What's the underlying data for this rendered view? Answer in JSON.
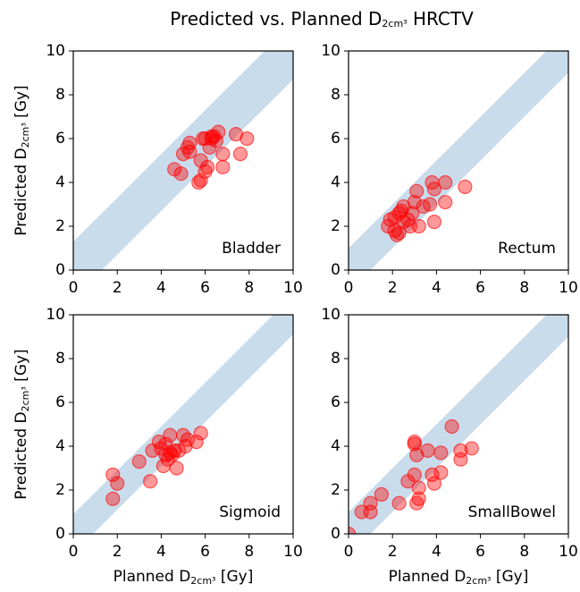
{
  "title": [
    "Predicted vs. Planned D",
    "2cm³",
    " HRCTV"
  ],
  "chart_data": [
    {
      "type": "scatter",
      "label": "Bladder",
      "ylabel": [
        "Predicted D",
        "2cm³",
        " [Gy]"
      ],
      "xlim": [
        0,
        10
      ],
      "ylim": [
        0,
        10
      ],
      "xticks": [
        0,
        2,
        4,
        6,
        8,
        10
      ],
      "yticks": [
        0,
        2,
        4,
        6,
        8,
        10
      ],
      "band_halfwidth": 1.3,
      "band_color": "#c9dcec",
      "color": "#ff0000",
      "x": [
        4.6,
        4.9,
        5.0,
        5.2,
        5.3,
        5.3,
        5.7,
        5.8,
        5.8,
        5.9,
        6.0,
        6.0,
        6.1,
        6.2,
        6.3,
        6.3,
        6.4,
        6.5,
        6.6,
        6.8,
        6.8,
        7.4,
        7.6,
        7.9
      ],
      "y": [
        4.6,
        4.4,
        5.3,
        5.6,
        5.8,
        5.4,
        4.0,
        4.1,
        5.0,
        6.0,
        4.5,
        6.0,
        4.7,
        5.6,
        6.1,
        6.0,
        6.1,
        5.9,
        6.3,
        4.7,
        5.3,
        6.2,
        5.3,
        6.0
      ]
    },
    {
      "type": "scatter",
      "label": "Rectum",
      "xlim": [
        0,
        10
      ],
      "ylim": [
        0,
        10
      ],
      "xticks": [
        0,
        2,
        4,
        6,
        8,
        10
      ],
      "yticks": [
        0,
        2,
        4,
        6,
        8,
        10
      ],
      "band_halfwidth": 1.0,
      "band_color": "#c9dcec",
      "color": "#ff0000",
      "x": [
        1.8,
        1.9,
        2.1,
        2.1,
        2.2,
        2.3,
        2.3,
        2.4,
        2.5,
        2.5,
        2.7,
        2.8,
        2.9,
        3.0,
        3.1,
        3.2,
        3.4,
        3.7,
        3.8,
        3.9,
        3.9,
        4.4,
        4.4,
        5.3
      ],
      "y": [
        2.0,
        2.3,
        1.8,
        2.4,
        1.6,
        1.7,
        2.6,
        2.7,
        2.9,
        2.2,
        2.3,
        2.0,
        2.6,
        3.1,
        3.6,
        2.0,
        2.9,
        3.0,
        4.0,
        3.7,
        2.2,
        3.1,
        4.0,
        3.8
      ]
    },
    {
      "type": "scatter",
      "label": "Sigmoid",
      "xlabel": [
        "Planned D",
        "2cm³",
        " [Gy]"
      ],
      "ylabel": [
        "Predicted D",
        "2cm³",
        " [Gy]"
      ],
      "xlim": [
        0,
        10
      ],
      "ylim": [
        0,
        10
      ],
      "xticks": [
        0,
        2,
        4,
        6,
        8,
        10
      ],
      "yticks": [
        0,
        2,
        4,
        6,
        8,
        10
      ],
      "band_halfwidth": 0.9,
      "band_color": "#c9dcec",
      "color": "#ff0000",
      "x": [
        1.8,
        1.8,
        2.0,
        3.0,
        3.5,
        3.6,
        3.9,
        4.0,
        4.1,
        4.2,
        4.3,
        4.4,
        4.4,
        4.5,
        4.6,
        4.7,
        4.8,
        5.0,
        5.1,
        5.2,
        5.6,
        5.8,
        4.2
      ],
      "y": [
        2.7,
        1.6,
        2.3,
        3.3,
        2.4,
        3.8,
        4.2,
        3.9,
        3.1,
        4.1,
        3.4,
        3.7,
        4.5,
        3.6,
        3.8,
        3.0,
        3.8,
        4.5,
        4.0,
        4.3,
        4.2,
        4.6,
        3.6
      ]
    },
    {
      "type": "scatter",
      "label": "SmallBowel",
      "xlabel": [
        "Planned D",
        "2cm³",
        " [Gy]"
      ],
      "xlim": [
        0,
        10
      ],
      "ylim": [
        0,
        10
      ],
      "xticks": [
        0,
        2,
        4,
        6,
        8,
        10
      ],
      "yticks": [
        0,
        2,
        4,
        6,
        8,
        10
      ],
      "band_halfwidth": 1.0,
      "band_color": "#c9dcec",
      "color": "#ff0000",
      "x": [
        0,
        0.6,
        1.0,
        1.0,
        1.5,
        2.3,
        2.7,
        3.0,
        3.0,
        3.0,
        3.1,
        3.1,
        3.2,
        3.2,
        3.6,
        3.8,
        3.9,
        4.2,
        4.2,
        4.7,
        5.1,
        5.1,
        5.6
      ],
      "y": [
        0,
        1.0,
        1.0,
        1.4,
        1.8,
        1.4,
        2.4,
        4.2,
        4.1,
        2.7,
        3.6,
        1.4,
        2.1,
        1.6,
        3.8,
        2.7,
        2.3,
        3.7,
        2.8,
        4.9,
        3.4,
        3.8,
        3.9
      ]
    }
  ]
}
